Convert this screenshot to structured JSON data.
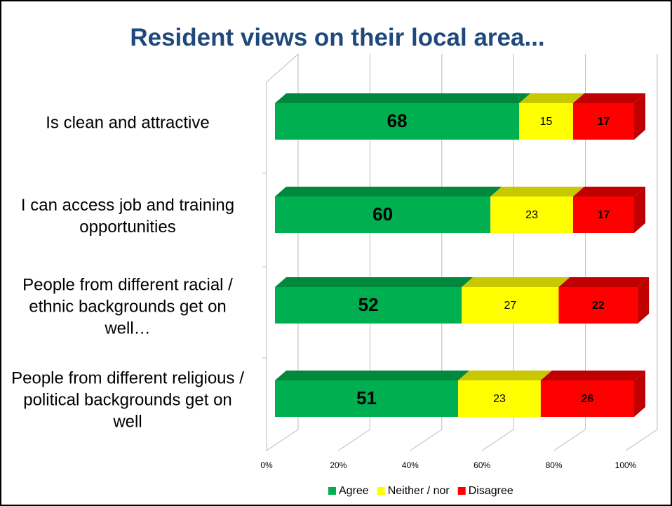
{
  "chart_data": {
    "type": "bar",
    "orientation": "horizontal",
    "stacked": true,
    "title": "Resident views on their local area...",
    "categories": [
      "Is clean and attractive",
      "I can access job and training opportunities",
      "People from different racial / ethnic backgrounds get on well…",
      "People from different religious / political backgrounds get on well"
    ],
    "series": [
      {
        "name": "Agree",
        "color": "#00b050",
        "values": [
          68,
          60,
          52,
          51
        ]
      },
      {
        "name": "Neither / nor",
        "color": "#ffff00",
        "values": [
          15,
          23,
          27,
          23
        ]
      },
      {
        "name": "Disagree",
        "color": "#ff0000",
        "values": [
          17,
          17,
          22,
          26
        ]
      }
    ],
    "xlim": [
      0,
      100
    ],
    "xticks": [
      {
        "value": 0,
        "label": "0%"
      },
      {
        "value": 20,
        "label": "20%"
      },
      {
        "value": 40,
        "label": "40%"
      },
      {
        "value": 60,
        "label": "60%"
      },
      {
        "value": 80,
        "label": "80%"
      },
      {
        "value": 100,
        "label": "100%"
      }
    ],
    "grid": true,
    "legend": "bottom"
  }
}
